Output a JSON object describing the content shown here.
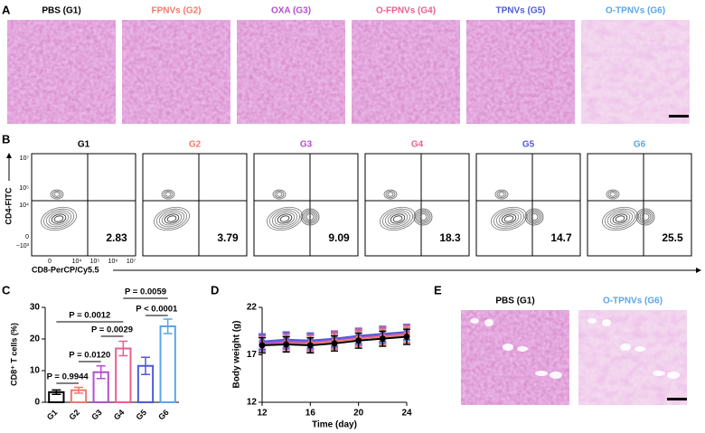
{
  "panel_labels": [
    "A",
    "B",
    "C",
    "D",
    "E"
  ],
  "histology": {
    "titles": [
      {
        "text": "PBS (G1)",
        "color": "#000000"
      },
      {
        "text": "FPNVs (G2)",
        "color": "#f07a6e"
      },
      {
        "text": "OXA (G3)",
        "color": "#b44fd0"
      },
      {
        "text": "O-FPNVs (G4)",
        "color": "#e8608f"
      },
      {
        "text": "TPNVs (G5)",
        "color": "#4e5ad8"
      },
      {
        "text": "O-TPNVs (G6)",
        "color": "#5aa6e8"
      }
    ]
  },
  "flow": {
    "y_label": "CD4-FITC",
    "x_label": "CD8-PerCP/Cy5.5",
    "yticks": [
      "10⁷",
      "10⁵",
      "10⁴",
      "0",
      "−10³"
    ],
    "xticks": [
      "0",
      "10⁴",
      "10⁵",
      "10⁶",
      "10⁷"
    ],
    "groups": [
      {
        "name": "G1",
        "color": "#000000",
        "value": 2.83
      },
      {
        "name": "G2",
        "color": "#f07a6e",
        "value": 3.79
      },
      {
        "name": "G3",
        "color": "#b44fd0",
        "value": 9.09
      },
      {
        "name": "G4",
        "color": "#e8608f",
        "value": 18.3
      },
      {
        "name": "G5",
        "color": "#4e5ad8",
        "value": 14.7
      },
      {
        "name": "G6",
        "color": "#5aa6e8",
        "value": 25.5
      }
    ]
  },
  "chart_data": [
    {
      "type": "bar",
      "ylabel": "CD8⁺ T cells (%)",
      "categories": [
        "G1",
        "G2",
        "G3",
        "G4",
        "G5",
        "G6"
      ],
      "values": [
        3.2,
        3.8,
        9.5,
        17,
        11.5,
        24
      ],
      "errors": [
        0.7,
        0.9,
        2,
        2.3,
        2.7,
        2.3
      ],
      "colors": [
        "#000000",
        "#f07a6e",
        "#b44fd0",
        "#e8608f",
        "#4e5ad8",
        "#5aa6e8"
      ],
      "ylim": [
        0,
        30
      ],
      "yticks": [
        0,
        10,
        20,
        30
      ],
      "annotations": [
        "P = 0.9944",
        "P = 0.0120",
        "P = 0.0029",
        "P = 0.0012",
        "P < 0.0001",
        "P = 0.0059"
      ]
    },
    {
      "type": "line",
      "xlabel": "Time (day)",
      "ylabel": "Body weight (g)",
      "x": [
        12,
        14,
        16,
        18,
        20,
        22,
        24
      ],
      "xlim": [
        12,
        24
      ],
      "xticks": [
        12,
        16,
        20,
        24
      ],
      "ylim": [
        12,
        22
      ],
      "yticks": [
        12,
        17,
        22
      ],
      "series": [
        {
          "color": "#5aa6e8",
          "values": [
            18.3,
            18.5,
            18.4,
            18.6,
            18.9,
            19.1,
            19.3
          ],
          "errors": [
            0.8,
            0.8,
            0.8,
            0.8,
            0.8,
            0.8,
            0.8
          ]
        },
        {
          "color": "#4e5ad8",
          "values": [
            18.4,
            18.6,
            18.5,
            18.7,
            19.0,
            19.2,
            19.4
          ],
          "errors": [
            0.8,
            0.8,
            0.8,
            0.8,
            0.8,
            0.8,
            0.8
          ]
        },
        {
          "color": "#e8608f",
          "values": [
            18.1,
            18.3,
            18.2,
            18.5,
            18.8,
            19.0,
            19.2
          ],
          "errors": [
            0.9,
            0.9,
            0.9,
            0.9,
            0.9,
            0.9,
            0.9
          ]
        },
        {
          "color": "#b44fd0",
          "values": [
            18.2,
            18.4,
            18.3,
            18.5,
            18.8,
            19.0,
            19.1
          ],
          "errors": [
            0.8,
            0.8,
            0.8,
            0.8,
            0.8,
            0.8,
            0.8
          ]
        },
        {
          "color": "#f07a6e",
          "values": [
            18.0,
            18.2,
            18.2,
            18.4,
            18.7,
            18.9,
            19.1
          ],
          "errors": [
            0.8,
            0.8,
            0.8,
            0.8,
            0.8,
            0.8,
            0.8
          ]
        },
        {
          "color": "#000000",
          "values": [
            18.0,
            18.1,
            18.0,
            18.2,
            18.5,
            18.7,
            18.9
          ],
          "errors": [
            0.8,
            0.8,
            0.8,
            0.8,
            0.8,
            0.8,
            0.8
          ]
        }
      ]
    }
  ],
  "lung": {
    "titles": [
      {
        "text": "PBS (G1)",
        "color": "#000000"
      },
      {
        "text": "O-TPNVs (G6)",
        "color": "#5aa6e8"
      }
    ]
  }
}
